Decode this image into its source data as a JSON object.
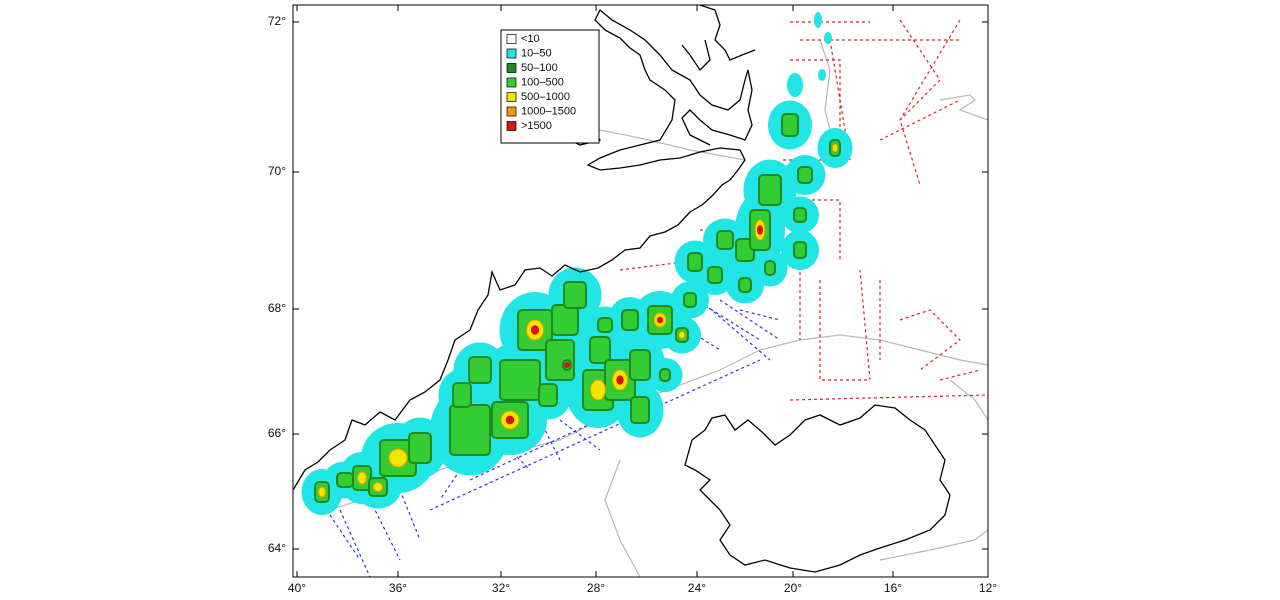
{
  "map": {
    "y_tick_labels": [
      "72°",
      "70°",
      "68°",
      "66°",
      "64°"
    ],
    "x_tick_labels": [
      "40°",
      "36°",
      "32°",
      "28°",
      "24°",
      "20°",
      "16°",
      "12°"
    ],
    "legend": [
      {
        "label": "<10",
        "color": "#ffffff"
      },
      {
        "label": "10–50",
        "color": "#22e5e5"
      },
      {
        "label": "50–100",
        "color": "#1f8a1f"
      },
      {
        "label": "100–500",
        "color": "#33cc33"
      },
      {
        "label": "500–1000",
        "color": "#f2e600"
      },
      {
        "label": "1000–1500",
        "color": "#f29a00"
      },
      {
        "label": ">1500",
        "color": "#dd1111"
      }
    ]
  }
}
